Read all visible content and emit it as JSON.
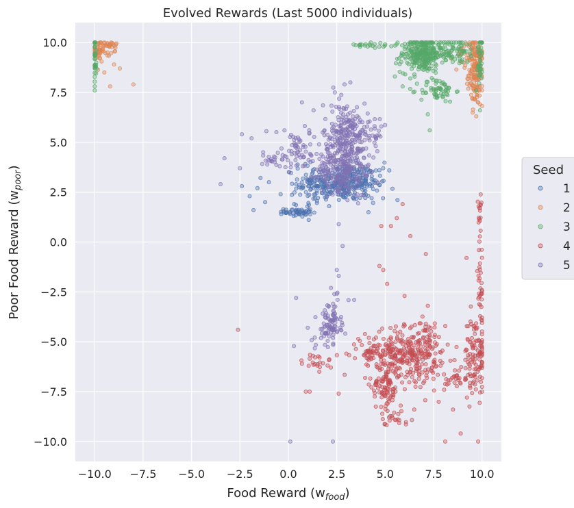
{
  "chart_data": {
    "type": "scatter",
    "title": "Evolved Rewards (Last 5000 individuals)",
    "xlabel": "Food Reward (w",
    "xlabel_sub": "food",
    "xlabel_suffix": ")",
    "ylabel": "Poor Food Reward (w",
    "ylabel_sub": "poor",
    "ylabel_suffix": ")",
    "xlim": [
      -11.0,
      11.0
    ],
    "ylim": [
      -11.0,
      11.0
    ],
    "xticks": [
      -10.0,
      -7.5,
      -5.0,
      -2.5,
      0.0,
      2.5,
      5.0,
      7.5,
      10.0
    ],
    "yticks": [
      -10.0,
      -7.5,
      -5.0,
      -2.5,
      0.0,
      2.5,
      5.0,
      7.5,
      10.0
    ],
    "xtick_labels": [
      "−10.0",
      "−7.5",
      "−5.0",
      "−2.5",
      "0.0",
      "2.5",
      "5.0",
      "7.5",
      "10.0"
    ],
    "ytick_labels": [
      "−10.0",
      "−7.5",
      "−5.0",
      "−2.5",
      "0.0",
      "2.5",
      "5.0",
      "7.5",
      "10.0"
    ],
    "grid": true,
    "legend_placement": "outside-right",
    "legend_title": "Seed",
    "background": "#EAEAF2",
    "series": [
      {
        "name": "1",
        "color": "#4C72B0",
        "clusters": [
          {
            "cx": 2.6,
            "cy": 3.0,
            "sx": 1.0,
            "sy": 0.45,
            "n": 240
          },
          {
            "cx": 0.5,
            "cy": 1.5,
            "sx": 0.35,
            "sy": 0.12,
            "n": 50
          },
          {
            "cx": 1.0,
            "cy": 2.8,
            "sx": 0.6,
            "sy": 0.6,
            "n": 40
          },
          {
            "cx": 3.8,
            "cy": 3.3,
            "sx": 0.6,
            "sy": 0.35,
            "n": 40
          },
          {
            "cx": 3.4,
            "cy": 2.5,
            "sx": 0.8,
            "sy": 0.35,
            "n": 40
          }
        ],
        "outliers": [
          [
            -2.0,
            2.3
          ],
          [
            -1.8,
            1.6
          ],
          [
            -1.2,
            2.0
          ],
          [
            -1.6,
            2.7
          ],
          [
            -2.4,
            2.8
          ],
          [
            0.3,
            1.9
          ],
          [
            4.7,
            3.6
          ],
          [
            4.9,
            3.7
          ],
          [
            4.3,
            2.2
          ],
          [
            2.1,
            1.8
          ],
          [
            -0.4,
            2.4
          ],
          [
            -1.0,
            3.0
          ]
        ]
      },
      {
        "name": "2",
        "color": "#DD8452",
        "clusters": [
          {
            "cx": 9.7,
            "cy": 8.5,
            "sx": 0.2,
            "sy": 0.8,
            "n": 140
          },
          {
            "cx": 9.3,
            "cy": 9.4,
            "sx": 0.3,
            "sy": 0.4,
            "n": 40
          },
          {
            "cx": -9.7,
            "cy": 9.6,
            "sx": 0.25,
            "sy": 0.25,
            "n": 50
          },
          {
            "cx": -9.2,
            "cy": 9.9,
            "sx": 0.25,
            "sy": 0.08,
            "n": 20
          }
        ],
        "outliers": [
          [
            -8.0,
            7.9
          ],
          [
            -8.7,
            8.7
          ],
          [
            -9.0,
            8.9
          ],
          [
            -9.2,
            7.8
          ],
          [
            -9.5,
            8.5
          ],
          [
            -8.9,
            9.9
          ],
          [
            9.6,
            7.2
          ],
          [
            9.9,
            6.9
          ],
          [
            8.4,
            9.2
          ],
          [
            9.8,
            7.0
          ]
        ]
      },
      {
        "name": "3",
        "color": "#55A868",
        "clusters": [
          {
            "cx": 6.9,
            "cy": 9.4,
            "sx": 0.55,
            "sy": 0.45,
            "n": 280
          },
          {
            "cx": 7.7,
            "cy": 7.6,
            "sx": 0.45,
            "sy": 0.3,
            "n": 60
          },
          {
            "cx": 8.6,
            "cy": 9.6,
            "sx": 0.6,
            "sy": 0.35,
            "n": 70
          },
          {
            "cx": -10.0,
            "cy": 9.3,
            "sx": 0.06,
            "sy": 0.7,
            "n": 40
          },
          {
            "cx": 9.9,
            "cy": 9.3,
            "sx": 0.08,
            "sy": 0.7,
            "n": 40
          },
          {
            "cx": 4.5,
            "cy": 9.9,
            "sx": 0.5,
            "sy": 0.08,
            "n": 20
          }
        ],
        "outliers": [
          [
            7.3,
            5.6
          ],
          [
            7.2,
            6.4
          ],
          [
            9.9,
            6.6
          ],
          [
            -10.0,
            7.6
          ],
          [
            5.5,
            8.3
          ],
          [
            5.9,
            7.8
          ],
          [
            6.3,
            8.2
          ],
          [
            3.7,
            9.9
          ],
          [
            4.1,
            9.8
          ],
          [
            9.7,
            7.6
          ]
        ]
      },
      {
        "name": "4",
        "color": "#C44E52",
        "clusters": [
          {
            "cx": 5.8,
            "cy": -5.5,
            "sx": 0.9,
            "sy": 0.55,
            "n": 220
          },
          {
            "cx": 5.0,
            "cy": -7.2,
            "sx": 0.35,
            "sy": 0.6,
            "n": 90
          },
          {
            "cx": 7.2,
            "cy": -6.2,
            "sx": 0.6,
            "sy": 0.8,
            "n": 90
          },
          {
            "cx": 9.7,
            "cy": -5.6,
            "sx": 0.3,
            "sy": 1.0,
            "n": 110
          },
          {
            "cx": 8.9,
            "cy": -6.8,
            "sx": 0.4,
            "sy": 0.2,
            "n": 30
          },
          {
            "cx": 4.3,
            "cy": -5.6,
            "sx": 0.6,
            "sy": 0.3,
            "n": 40
          },
          {
            "cx": 1.5,
            "cy": -6.0,
            "sx": 0.4,
            "sy": 0.2,
            "n": 20
          },
          {
            "cx": 6.9,
            "cy": -4.6,
            "sx": 0.3,
            "sy": 0.3,
            "n": 25
          },
          {
            "cx": 5.5,
            "cy": -8.8,
            "sx": 0.4,
            "sy": 0.2,
            "n": 20
          },
          {
            "cx": 9.9,
            "cy": -2.0,
            "sx": 0.08,
            "sy": 1.5,
            "n": 30
          },
          {
            "cx": 9.9,
            "cy": 1.5,
            "sx": 0.06,
            "sy": 0.8,
            "n": 15
          }
        ],
        "outliers": [
          [
            -2.6,
            -4.4
          ],
          [
            0.9,
            -7.5
          ],
          [
            1.1,
            -7.5
          ],
          [
            2.6,
            -7.6
          ],
          [
            4.8,
            0.8
          ],
          [
            5.3,
            0.8
          ],
          [
            5.6,
            1.2
          ],
          [
            5.9,
            1.9
          ],
          [
            6.3,
            0.3
          ],
          [
            7.1,
            -0.6
          ],
          [
            7.2,
            -3.2
          ],
          [
            5.1,
            -2.1
          ],
          [
            4.7,
            -1.2
          ],
          [
            4.9,
            -1.4
          ],
          [
            6.0,
            -2.7
          ],
          [
            7.1,
            -4.1
          ],
          [
            8.5,
            -8.4
          ],
          [
            8.9,
            -9.6
          ],
          [
            8.1,
            -10.0
          ],
          [
            9.8,
            -10.0
          ],
          [
            1.6,
            -6.5
          ],
          [
            0.7,
            -6.1
          ],
          [
            6.5,
            -8.4
          ],
          [
            5.8,
            -8.2
          ],
          [
            9.2,
            -0.8
          ]
        ]
      },
      {
        "name": "5",
        "color": "#8172B3",
        "clusters": [
          {
            "cx": 3.0,
            "cy": 5.0,
            "sx": 0.6,
            "sy": 1.0,
            "n": 300
          },
          {
            "cx": 2.8,
            "cy": 3.5,
            "sx": 0.7,
            "sy": 0.6,
            "n": 120
          },
          {
            "cx": 2.2,
            "cy": -4.0,
            "sx": 0.25,
            "sy": 0.5,
            "n": 80
          },
          {
            "cx": 0.6,
            "cy": 4.6,
            "sx": 0.8,
            "sy": 0.6,
            "n": 60
          },
          {
            "cx": -0.6,
            "cy": 4.1,
            "sx": 0.4,
            "sy": 0.2,
            "n": 25
          },
          {
            "cx": 4.5,
            "cy": 5.3,
            "sx": 0.25,
            "sy": 0.3,
            "n": 20
          },
          {
            "cx": 1.8,
            "cy": -4.7,
            "sx": 0.5,
            "sy": 0.3,
            "n": 15
          }
        ],
        "outliers": [
          [
            -3.5,
            2.9
          ],
          [
            -3.3,
            4.2
          ],
          [
            -2.5,
            3.7
          ],
          [
            -2.4,
            5.4
          ],
          [
            -1.9,
            5.2
          ],
          [
            -1.3,
            4.5
          ],
          [
            2.4,
            7.5
          ],
          [
            2.9,
            7.9
          ],
          [
            3.2,
            8.0
          ],
          [
            1.3,
            6.6
          ],
          [
            0.7,
            7.0
          ],
          [
            2.6,
            0.9
          ],
          [
            2.8,
            -0.2
          ],
          [
            2.5,
            -1.4
          ],
          [
            2.6,
            -1.7
          ],
          [
            2.2,
            -2.3
          ],
          [
            2.5,
            -2.6
          ],
          [
            0.1,
            -10.0
          ],
          [
            2.3,
            -10.0
          ],
          [
            0.4,
            -2.8
          ],
          [
            1.0,
            -4.3
          ],
          [
            3.4,
            -2.9
          ],
          [
            -0.2,
            5.6
          ],
          [
            4.1,
            3.8
          ]
        ]
      }
    ]
  }
}
